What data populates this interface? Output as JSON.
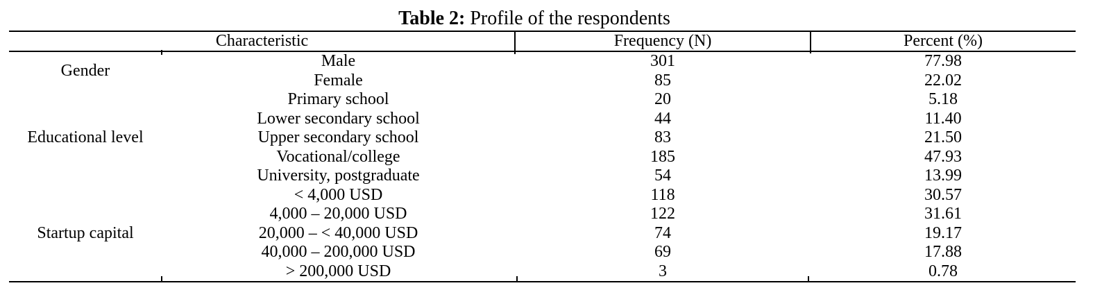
{
  "title": {
    "label": "Table 2:",
    "text": " Profile of the respondents"
  },
  "table": {
    "headers": {
      "characteristic": "Characteristic",
      "frequency": "Frequency (N)",
      "percent": "Percent (%)"
    },
    "groups": [
      {
        "label": "Gender",
        "rows": [
          {
            "category": "Male",
            "frequency": "301",
            "percent": "77.98"
          },
          {
            "category": "Female",
            "frequency": "85",
            "percent": "22.02"
          }
        ]
      },
      {
        "label": "Educational level",
        "rows": [
          {
            "category": "Primary school",
            "frequency": "20",
            "percent": "5.18"
          },
          {
            "category": "Lower secondary school",
            "frequency": "44",
            "percent": "11.40"
          },
          {
            "category": "Upper secondary school",
            "frequency": "83",
            "percent": "21.50"
          },
          {
            "category": "Vocational/college",
            "frequency": "185",
            "percent": "47.93"
          },
          {
            "category": "University, postgraduate",
            "frequency": "54",
            "percent": "13.99"
          }
        ]
      },
      {
        "label": "Startup capital",
        "rows": [
          {
            "category": "< 4,000 USD",
            "frequency": "118",
            "percent": "30.57"
          },
          {
            "category": "4,000 – 20,000 USD",
            "frequency": "122",
            "percent": "31.61"
          },
          {
            "category": "20,000 – < 40,000 USD",
            "frequency": "74",
            "percent": "19.17"
          },
          {
            "category": "40,000 – 200,000 USD",
            "frequency": "69",
            "percent": "17.88"
          },
          {
            "category": "> 200,000 USD",
            "frequency": "3",
            "percent": "0.78"
          }
        ]
      }
    ]
  },
  "colors": {
    "background": "#ffffff",
    "text": "#000000",
    "rule": "#000000"
  }
}
